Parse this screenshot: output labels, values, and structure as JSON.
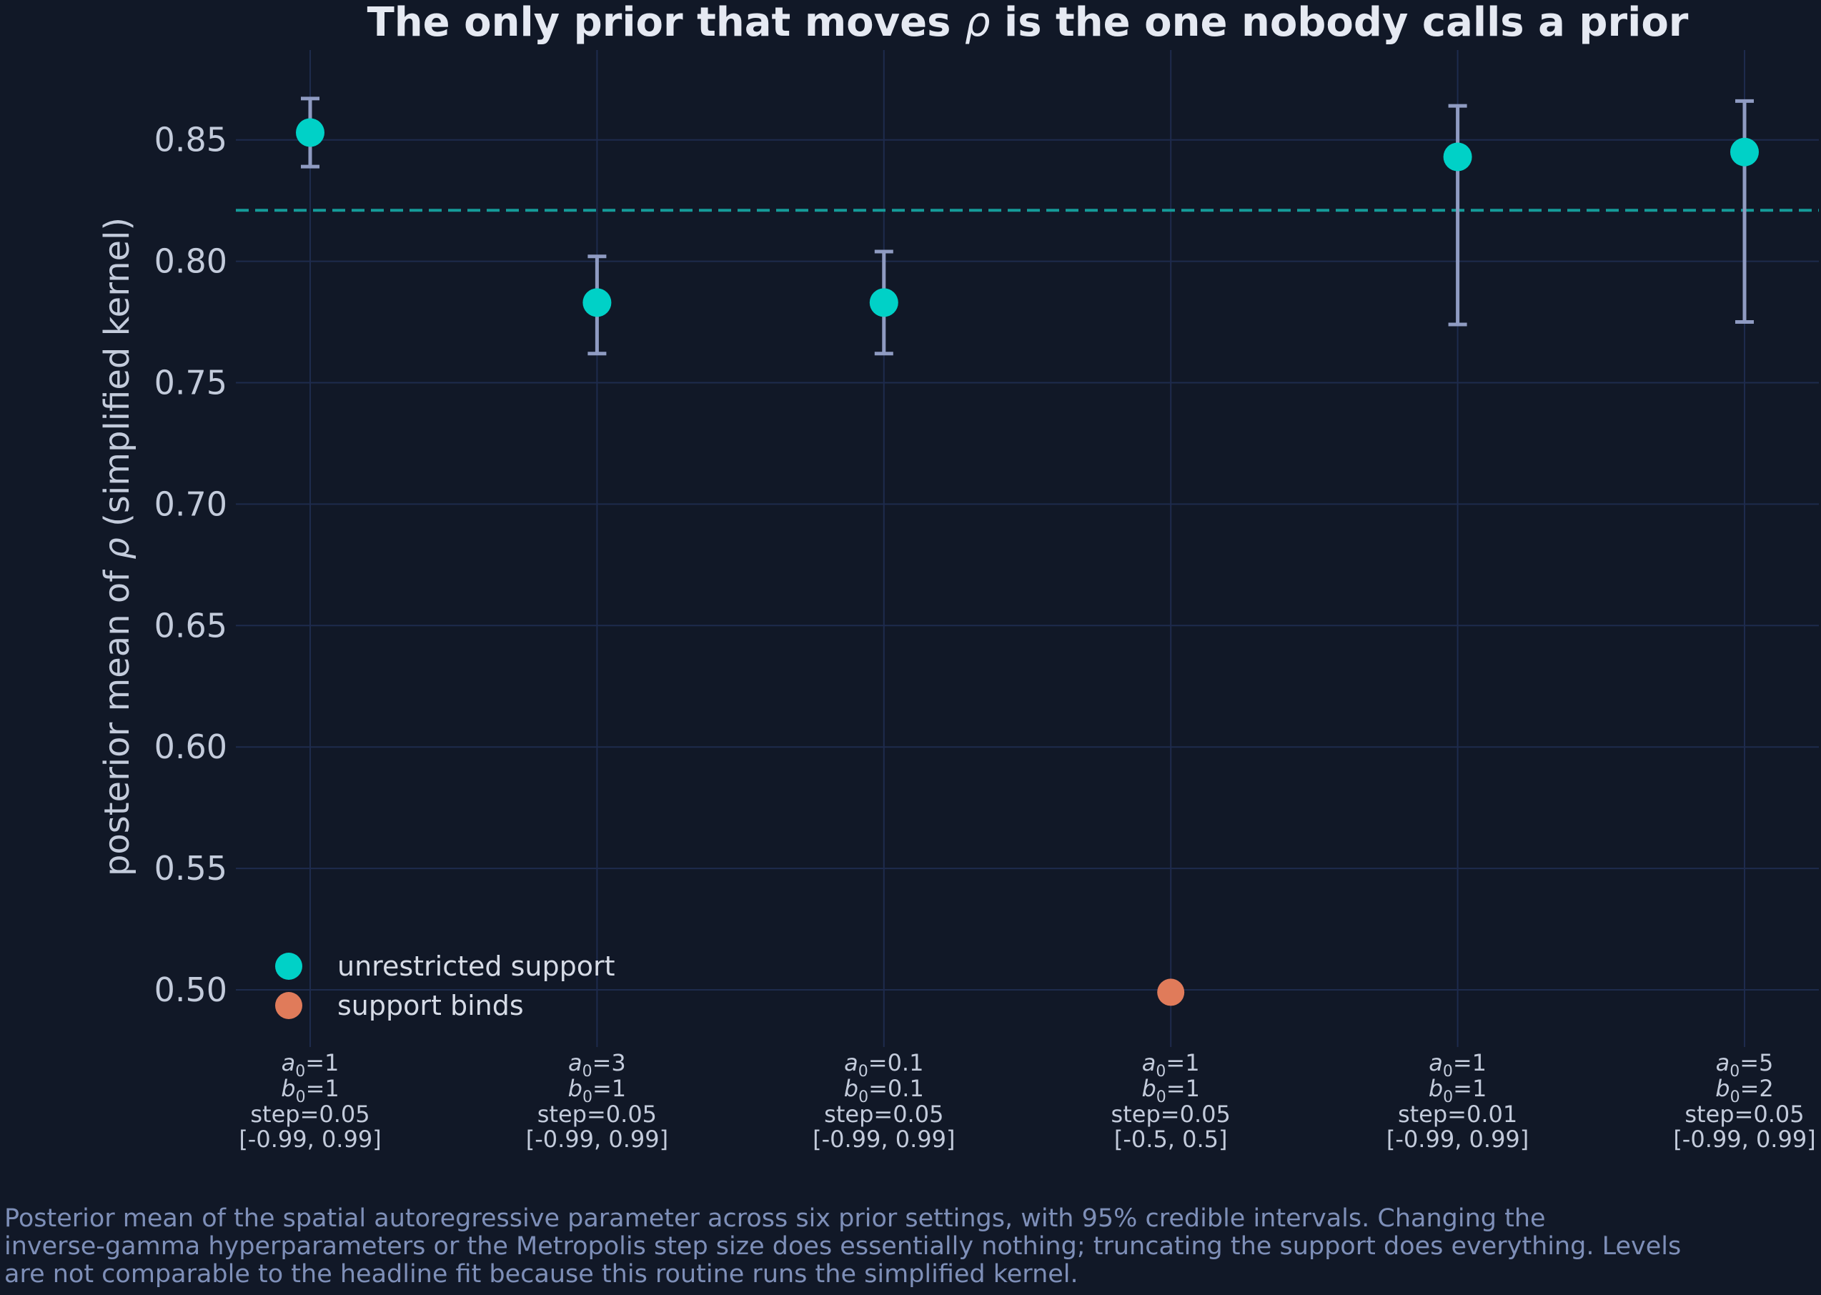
{
  "chart_data": {
    "type": "scatter",
    "title_pre": "The only prior that moves ",
    "title_symbol": "ρ",
    "title_post": " is the one nobody calls a prior",
    "ylabel_pre": "posterior mean of ",
    "ylabel_symbol": "ρ",
    "ylabel_post": " (simplified kernel)",
    "ylim": [
      0.48,
      0.887
    ],
    "yticks": [
      0.5,
      0.55,
      0.6,
      0.65,
      0.7,
      0.75,
      0.8,
      0.85
    ],
    "ytick_labels": [
      "0.50",
      "0.55",
      "0.60",
      "0.65",
      "0.70",
      "0.75",
      "0.80",
      "0.85"
    ],
    "grid": true,
    "reference_line": 0.821,
    "categories": [
      {
        "a0": "1",
        "b0": "1",
        "step": "step=0.05",
        "support": "[-0.99, 0.99]"
      },
      {
        "a0": "3",
        "b0": "1",
        "step": "step=0.05",
        "support": "[-0.99, 0.99]"
      },
      {
        "a0": "0.1",
        "b0": "0.1",
        "step": "step=0.05",
        "support": "[-0.99, 0.99]"
      },
      {
        "a0": "1",
        "b0": "1",
        "step": "step=0.05",
        "support": "[-0.5, 0.5]"
      },
      {
        "a0": "1",
        "b0": "1",
        "step": "step=0.01",
        "support": "[-0.99, 0.99]"
      },
      {
        "a0": "5",
        "b0": "2",
        "step": "step=0.05",
        "support": "[-0.99, 0.99]"
      }
    ],
    "points": [
      {
        "mean": 0.853,
        "lower": 0.839,
        "upper": 0.867,
        "group": "unrestricted"
      },
      {
        "mean": 0.783,
        "lower": 0.762,
        "upper": 0.802,
        "group": "unrestricted"
      },
      {
        "mean": 0.783,
        "lower": 0.762,
        "upper": 0.804,
        "group": "unrestricted"
      },
      {
        "mean": 0.499,
        "lower": null,
        "upper": null,
        "group": "binds"
      },
      {
        "mean": 0.843,
        "lower": 0.774,
        "upper": 0.864,
        "group": "unrestricted"
      },
      {
        "mean": 0.845,
        "lower": 0.775,
        "upper": 0.866,
        "group": "unrestricted"
      }
    ],
    "legend": {
      "placement": "bottom-left",
      "entries": [
        {
          "label": "unrestricted support",
          "color": "#00d1c7"
        },
        {
          "label": "support binds",
          "color": "#e07b5a"
        }
      ]
    },
    "colors": {
      "background": "#111827",
      "grid": "#1e2b4d",
      "unrestricted": "#00d1c7",
      "binds": "#e07b5a",
      "errorbar": "#8f9bc2",
      "reference_line": "#159b99"
    }
  },
  "caption": "Posterior mean of the spatial autoregressive parameter across six prior settings, with 95% credible intervals. Changing the\ninverse-gamma hyperparameters or the Metropolis step size does essentially nothing; truncating the support does everything. Levels\nare not comparable to the headline fit because this routine runs the simplified kernel."
}
